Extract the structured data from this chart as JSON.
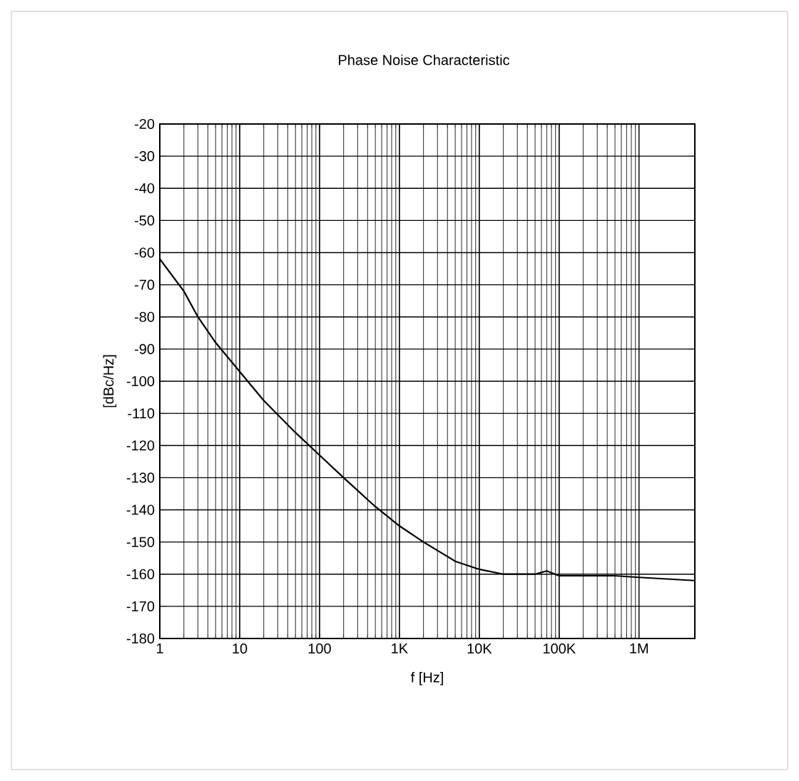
{
  "chart_data": {
    "type": "line",
    "title": "Phase Noise Characteristic",
    "xlabel": "f [Hz]",
    "ylabel": "[dBc/Hz]",
    "log": "x",
    "grid": true,
    "marker": "none",
    "line_style": "solid",
    "xlim": [
      1,
      5000000
    ],
    "ylim": [
      -180,
      -20
    ],
    "xticks": [
      1,
      10,
      100,
      {
        "value": 1000,
        "label": "1K"
      },
      {
        "value": 10000,
        "label": "10K"
      },
      {
        "value": 100000,
        "label": "100K"
      },
      {
        "value": 1000000,
        "label": "1M"
      }
    ],
    "yticks": [
      -180,
      -170,
      -160,
      -150,
      -140,
      -130,
      -120,
      -110,
      -100,
      -90,
      -80,
      -70,
      -60,
      -50,
      -40,
      -30,
      -20
    ],
    "x": [
      1,
      2,
      3,
      5,
      10,
      20,
      50,
      100,
      200,
      500,
      1000,
      2000,
      5000,
      10000,
      20000,
      50000,
      70000,
      100000,
      500000,
      1000000,
      5000000
    ],
    "series": [
      {
        "color": "#000000",
        "values": [
          -62,
          -72,
          -80,
          -88,
          -97,
          -106,
          -116,
          -123,
          -130,
          -139,
          -145,
          -150,
          -156,
          -158.5,
          -160,
          -160,
          -159,
          -160.5,
          -160.5,
          -161,
          -162
        ]
      }
    ]
  }
}
